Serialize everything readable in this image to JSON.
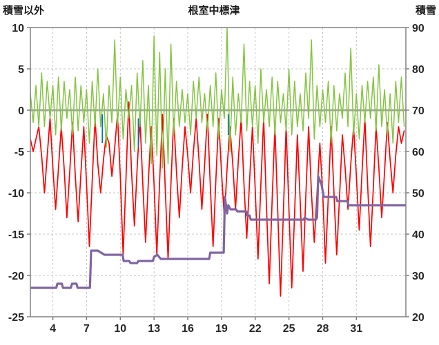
{
  "header": {
    "left_axis_title": "積雪以外",
    "title": "根室中標津",
    "right_axis_title": "積雪"
  },
  "chart_data": {
    "type": "line",
    "title": "根室中標津",
    "left_axis": {
      "label": "積雪以外",
      "range": [
        10,
        -25
      ],
      "ticks": [
        10,
        5,
        0,
        -5,
        -10,
        -15,
        -20,
        -25
      ]
    },
    "right_axis": {
      "label": "積雪",
      "range": [
        90,
        20
      ],
      "ticks": [
        90,
        80,
        70,
        60,
        50,
        40,
        30,
        20
      ]
    },
    "x_axis": {
      "range": [
        2,
        35.4
      ],
      "ticks": [
        4,
        7,
        10,
        13,
        16,
        19,
        22,
        25,
        28,
        31
      ]
    },
    "grid": true,
    "legend": "none",
    "colors": {
      "red": "#FF0000",
      "green": "#84C441",
      "purple": "#8064A2",
      "blue": "#0070C0",
      "zero_line": "#A6A6A6",
      "grid": "#C6C6C6",
      "border": "#808080",
      "text": "#262626"
    },
    "t0": 2,
    "dt": 0.25,
    "series": [
      {
        "name": "temperature-red-line",
        "axis": "left",
        "color_key": "red",
        "width": 1.7,
        "values": [
          -3.5,
          -5,
          -3.5,
          -2,
          -5.5,
          -10,
          -5.5,
          -1,
          -7,
          -12,
          -7,
          -2,
          -7,
          -13,
          -7.5,
          -1.5,
          -8,
          -13.5,
          -7.5,
          -2,
          -9,
          -16.5,
          -8.5,
          -1,
          -6.5,
          -10,
          -6,
          -3,
          -4,
          -8,
          -4.5,
          -0.5,
          -8,
          -17.5,
          -8.5,
          1,
          -7.5,
          -14,
          -7,
          -1,
          -9,
          -16,
          -8.5,
          -2,
          -9,
          -17.5,
          -8.5,
          -0.5,
          -9.5,
          -18,
          -9,
          -1,
          -7.5,
          -13,
          -7,
          -2,
          -5.5,
          -10,
          -5,
          -1,
          -6,
          -12,
          -6.5,
          -0.5,
          -9,
          -16.5,
          -8.5,
          -1,
          -7.5,
          -13,
          -7,
          -2,
          -6.5,
          -12,
          -6,
          -1,
          -9,
          -15.5,
          -8.5,
          -2,
          -9.5,
          -18,
          -9,
          -1,
          -11.5,
          -21,
          -11,
          -2,
          -12,
          -22.5,
          -12.5,
          -2,
          -12,
          -21.5,
          -12.5,
          -3,
          -11,
          -19.5,
          -10.5,
          -2,
          -10,
          -16,
          -10,
          -4,
          -10,
          -18.5,
          -10.5,
          -2,
          -10,
          -17.5,
          -10.5,
          -3,
          -7,
          -12,
          -6.5,
          -2,
          -8,
          -14.5,
          -7.5,
          -1,
          -9,
          -16.5,
          -9.5,
          -2,
          -7,
          -13,
          -7.5,
          -1.5,
          -6,
          -10,
          -5.5,
          -2,
          -4,
          -2.5
        ]
      },
      {
        "name": "green-oscillating-line",
        "axis": "left",
        "color_key": "green",
        "width": 1.5,
        "values": [
          2,
          -1.5,
          3,
          -2,
          4.5,
          -2,
          3.5,
          -1,
          3,
          -3,
          4,
          -2.5,
          3.5,
          -1,
          2.5,
          -3,
          4,
          -2.5,
          3,
          -1.5,
          2.5,
          -4,
          3.5,
          -2,
          5,
          -2,
          2,
          -4.5,
          3,
          -1.5,
          8.5,
          -2,
          4,
          -3.5,
          2.5,
          -1,
          3,
          -5,
          4.5,
          -2,
          6,
          -4,
          3,
          -6.5,
          9,
          -5.5,
          7,
          -7,
          5,
          -6.5,
          8,
          -3,
          3.5,
          -2,
          2.5,
          -1.5,
          2,
          -3,
          3.5,
          -1,
          4,
          -1.5,
          2,
          -2.5,
          3,
          -2,
          4.5,
          -3.5,
          2.5,
          -1,
          10,
          -5,
          4,
          -3,
          2,
          -1.5,
          8,
          -2.5,
          3.5,
          -2,
          3,
          -4,
          5,
          -1.5,
          2.5,
          -2,
          4,
          -3,
          3.5,
          -1.5,
          2,
          -2.5,
          5,
          -3,
          3.5,
          -2,
          2,
          -2.5,
          4.5,
          -1,
          8.5,
          -3.5,
          3,
          -2,
          2.5,
          -1.5,
          3.5,
          -4,
          3,
          -2.5,
          2,
          -1,
          4.5,
          -2,
          7.5,
          -3,
          2,
          -3.5,
          3,
          -1.5,
          3.5,
          -1,
          4,
          -2.5,
          5.5,
          -2,
          2.5,
          -3,
          2,
          -4,
          3.5,
          -1.5,
          4,
          -2
        ]
      },
      {
        "name": "snow-depth-step-line",
        "axis": "right",
        "color_key": "purple",
        "width": 3.2,
        "points": [
          [
            2,
            27
          ],
          [
            4.3,
            27
          ],
          [
            4.4,
            28
          ],
          [
            4.8,
            28
          ],
          [
            4.9,
            27
          ],
          [
            5.6,
            27
          ],
          [
            5.7,
            28
          ],
          [
            6.1,
            28
          ],
          [
            6.2,
            27
          ],
          [
            7.3,
            27
          ],
          [
            7.4,
            36
          ],
          [
            8,
            36
          ],
          [
            8.3,
            35.5
          ],
          [
            8.6,
            35
          ],
          [
            10.2,
            35
          ],
          [
            10.3,
            33.5
          ],
          [
            10.8,
            33.5
          ],
          [
            10.9,
            33
          ],
          [
            11.5,
            33
          ],
          [
            11.6,
            33.5
          ],
          [
            12.9,
            33.5
          ],
          [
            13,
            34.5
          ],
          [
            13.3,
            35
          ],
          [
            13.6,
            34
          ],
          [
            17.9,
            34
          ],
          [
            18,
            35.5
          ],
          [
            19.2,
            35.5
          ],
          [
            19.3,
            49
          ],
          [
            19.5,
            45
          ],
          [
            19.6,
            47
          ],
          [
            19.8,
            46
          ],
          [
            20.3,
            46
          ],
          [
            20.4,
            45.5
          ],
          [
            21.2,
            45.5
          ],
          [
            21.3,
            44.5
          ],
          [
            21.5,
            44.5
          ],
          [
            21.6,
            43.5
          ],
          [
            26.3,
            43.5
          ],
          [
            26.4,
            44
          ],
          [
            26.7,
            43.5
          ],
          [
            27.4,
            43.5
          ],
          [
            27.5,
            44
          ],
          [
            27.6,
            54
          ],
          [
            27.9,
            52
          ],
          [
            28.1,
            49
          ],
          [
            29.2,
            49
          ],
          [
            29.3,
            48
          ],
          [
            30.2,
            48
          ],
          [
            30.3,
            47
          ],
          [
            35.4,
            47
          ]
        ]
      }
    ],
    "blue_marks": [
      [
        8.4,
        -0.5,
        -4
      ],
      [
        11.6,
        -1,
        -4.5
      ],
      [
        19.6,
        -0.5,
        -3
      ]
    ]
  }
}
